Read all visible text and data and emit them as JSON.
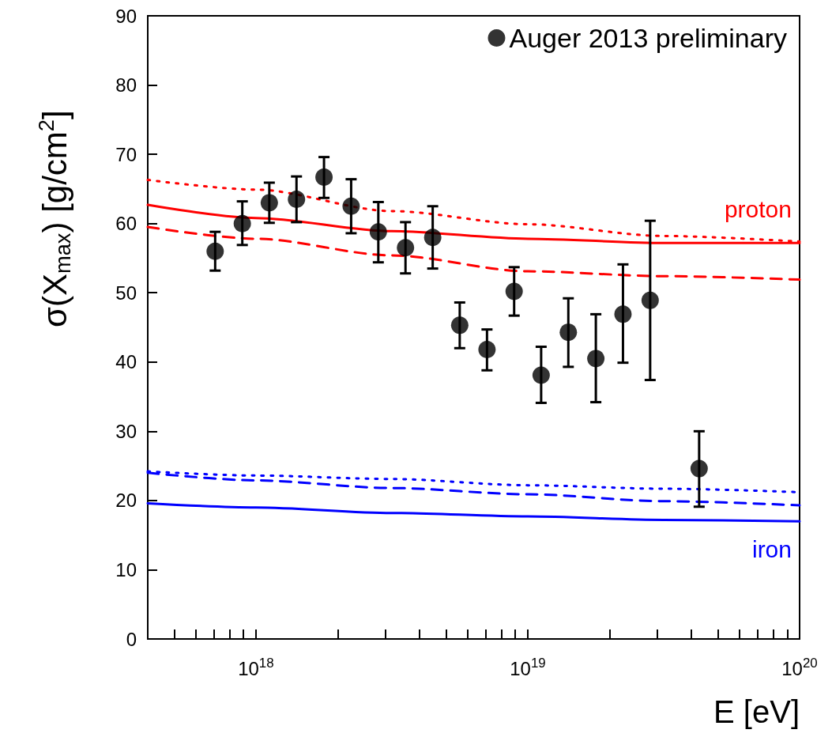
{
  "chart_data": {
    "type": "scatter",
    "xlabel": "E [eV]",
    "ylabel": "σ(X$_{max}$) [g/cm$^{2}$]",
    "log": "x",
    "grid": false,
    "legend": "top right",
    "xlim": [
      4e+17,
      1e+20
    ],
    "xticks": [
      {
        "value": 5e+17,
        "label": null
      },
      {
        "value": 6e+17,
        "label": null
      },
      {
        "value": 7e+17,
        "label": null
      },
      {
        "value": 8e+17,
        "label": null
      },
      {
        "value": 9e+17,
        "label": null
      },
      {
        "value": 1e+18,
        "label": "10$^{18}$"
      },
      {
        "value": 2e+18,
        "label": null
      },
      {
        "value": 3e+18,
        "label": null
      },
      {
        "value": 4e+18,
        "label": null
      },
      {
        "value": 5e+18,
        "label": null
      },
      {
        "value": 6e+18,
        "label": null
      },
      {
        "value": 7e+18,
        "label": null
      },
      {
        "value": 8e+18,
        "label": null
      },
      {
        "value": 9e+18,
        "label": null
      },
      {
        "value": 1e+19,
        "label": "10$^{19}$"
      },
      {
        "value": 2e+19,
        "label": null
      },
      {
        "value": 3e+19,
        "label": null
      },
      {
        "value": 4e+19,
        "label": null
      },
      {
        "value": 5e+19,
        "label": null
      },
      {
        "value": 6e+19,
        "label": null
      },
      {
        "value": 7e+19,
        "label": null
      },
      {
        "value": 8e+19,
        "label": null
      },
      {
        "value": 9e+19,
        "label": null
      },
      {
        "value": 1e+20,
        "label": "10$^{20}$"
      }
    ],
    "ylim": [
      0,
      90
    ],
    "yticks": [
      0,
      10,
      20,
      30,
      40,
      50,
      60,
      70,
      80,
      90
    ],
    "series": [
      {
        "name": "Auger 2013 preliminary",
        "color": "#000000",
        "marker": "circle",
        "x": [
          7.08e+17,
          8.91e+17,
          1.12e+18,
          1.41e+18,
          1.78e+18,
          2.24e+18,
          2.82e+18,
          3.55e+18,
          4.47e+18,
          5.62e+18,
          7.08e+18,
          8.91e+18,
          1.12e+19,
          1.41e+19,
          1.78e+19,
          2.24e+19,
          2.82e+19,
          4.27e+19
        ],
        "values": [
          56.0,
          60.0,
          63.0,
          63.5,
          66.7,
          62.5,
          58.8,
          56.5,
          58.0,
          45.3,
          41.8,
          50.2,
          38.1,
          44.3,
          40.5,
          46.9,
          48.9,
          24.6
        ],
        "errors": [
          [
            53.2,
            58.8
          ],
          [
            56.9,
            63.2
          ],
          [
            60.1,
            65.9
          ],
          [
            60.2,
            66.8
          ],
          [
            63.7,
            69.6
          ],
          [
            58.6,
            66.4
          ],
          [
            54.4,
            63.1
          ],
          [
            52.8,
            60.2
          ],
          [
            53.5,
            62.5
          ],
          [
            42.0,
            48.6
          ],
          [
            38.8,
            44.7
          ],
          [
            46.7,
            53.7
          ],
          [
            34.1,
            42.2
          ],
          [
            39.3,
            49.2
          ],
          [
            34.2,
            46.9
          ],
          [
            39.9,
            54.1
          ],
          [
            37.4,
            60.4
          ],
          [
            19.1,
            30.0
          ]
        ]
      },
      {
        "type": "line",
        "name": "proton",
        "color": "#ff0000",
        "marker": "none",
        "line_style": "solid",
        "x": [
          4e+17,
          1e+18,
          3.16e+18,
          1e+19,
          3.16e+19,
          1e+20
        ],
        "values": [
          62.7,
          60.8,
          58.9,
          57.8,
          57.2,
          57.2
        ]
      },
      {
        "type": "line",
        "color": "#ff0000",
        "marker": "none",
        "line_style": "dotted",
        "x": [
          4e+17,
          1e+18,
          3.16e+18,
          1e+19,
          3.16e+19,
          1e+20
        ],
        "values": [
          66.3,
          64.9,
          61.8,
          59.9,
          58.2,
          57.4
        ]
      },
      {
        "type": "line",
        "color": "#ff0000",
        "marker": "none",
        "line_style": "dashed",
        "x": [
          4e+17,
          1e+18,
          3.16e+18,
          1e+19,
          3.16e+19,
          1e+20
        ],
        "values": [
          59.5,
          57.8,
          55.4,
          53.1,
          52.4,
          51.9
        ]
      },
      {
        "type": "line",
        "name": "iron",
        "color": "#0000ff",
        "marker": "none",
        "line_style": "solid",
        "x": [
          4e+17,
          1e+18,
          3.16e+18,
          1e+19,
          3.16e+19,
          1e+20
        ],
        "values": [
          19.6,
          19.0,
          18.2,
          17.7,
          17.2,
          17.0
        ]
      },
      {
        "type": "line",
        "color": "#0000ff",
        "marker": "none",
        "line_style": "dotted",
        "x": [
          4e+17,
          1e+18,
          3.16e+18,
          1e+19,
          3.16e+19,
          1e+20
        ],
        "values": [
          24.2,
          23.6,
          23.1,
          22.2,
          21.7,
          21.2
        ]
      },
      {
        "type": "line",
        "color": "#0000ff",
        "marker": "none",
        "line_style": "dashed",
        "x": [
          4e+17,
          1e+18,
          3.16e+18,
          1e+19,
          3.16e+19,
          1e+20
        ],
        "values": [
          24.0,
          22.9,
          21.8,
          20.9,
          19.9,
          19.3
        ]
      }
    ]
  }
}
